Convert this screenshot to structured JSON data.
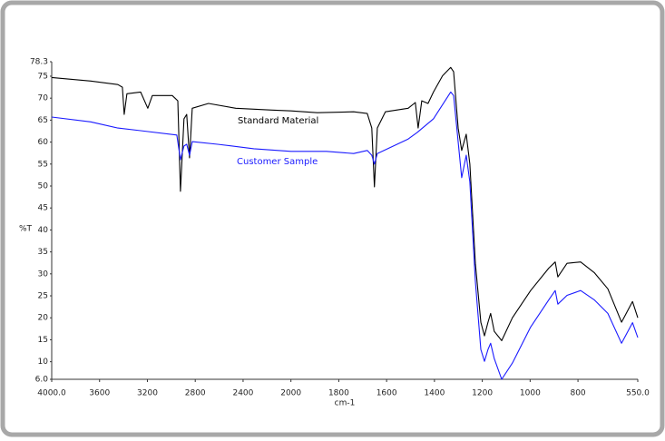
{
  "chart_data": {
    "type": "line",
    "y_label": "%T",
    "x_label": "cm-1",
    "xlim": [
      4000,
      550
    ],
    "x_scale_break": 2000,
    "xticks": [
      {
        "value": 4000,
        "label": "4000.0"
      },
      3600,
      3200,
      2800,
      2400,
      2000,
      1800,
      1600,
      1400,
      1200,
      1000,
      800,
      {
        "value": 550,
        "label": "550.0"
      }
    ],
    "ylim": [
      6,
      78.3
    ],
    "yticks": [
      {
        "value": 6,
        "label": "6.0"
      },
      10,
      15,
      20,
      25,
      30,
      35,
      40,
      45,
      50,
      55,
      60,
      65,
      70,
      75,
      78.3
    ],
    "annotations": [
      {
        "text": "Standard Material",
        "color": "#000000"
      },
      {
        "text": "Customer Sample",
        "color": "#1a1aff"
      }
    ],
    "series": [
      {
        "color": "#000000",
        "x": [
          4000,
          3674,
          3447,
          3409,
          3394,
          3371,
          3257,
          3197,
          3159,
          2992,
          2946,
          2924,
          2894,
          2871,
          2848,
          2825,
          2689,
          2461,
          2158,
          2000,
          1890,
          1738,
          1681,
          1662,
          1651,
          1639,
          1605,
          1510,
          1480,
          1468,
          1453,
          1427,
          1404,
          1366,
          1332,
          1320,
          1301,
          1286,
          1267,
          1252,
          1229,
          1206,
          1191,
          1176,
          1165,
          1150,
          1119,
          1074,
          998,
          922,
          895,
          884,
          846,
          789,
          732,
          675,
          618,
          572,
          550
        ],
        "values": [
          74.7,
          73.9,
          73.1,
          72.5,
          66.3,
          71.0,
          71.4,
          67.7,
          70.6,
          70.6,
          69.4,
          48.8,
          65.3,
          66.3,
          56.4,
          67.7,
          68.8,
          67.7,
          67.3,
          67.1,
          66.7,
          66.9,
          66.5,
          63.2,
          49.8,
          63.2,
          66.9,
          67.7,
          69.0,
          63.2,
          69.4,
          68.8,
          71.4,
          75.1,
          77.0,
          76.0,
          63.2,
          58.1,
          61.8,
          55.0,
          32.3,
          19.0,
          15.9,
          19.0,
          21.0,
          16.9,
          14.8,
          20.0,
          26.2,
          31.3,
          32.7,
          29.3,
          32.4,
          32.7,
          30.3,
          26.6,
          19.0,
          23.7,
          20.0
        ]
      },
      {
        "color": "#1a1aff",
        "x": [
          4000,
          3674,
          3447,
          3257,
          2954,
          2924,
          2894,
          2871,
          2848,
          2825,
          2613,
          2310,
          2000,
          1852,
          1738,
          1681,
          1662,
          1651,
          1639,
          1510,
          1472,
          1404,
          1332,
          1320,
          1286,
          1267,
          1252,
          1229,
          1206,
          1191,
          1176,
          1165,
          1150,
          1119,
          1074,
          998,
          922,
          895,
          884,
          846,
          789,
          732,
          675,
          618,
          572,
          550
        ],
        "values": [
          65.7,
          64.6,
          63.2,
          62.6,
          61.6,
          56.0,
          59.1,
          59.5,
          57.0,
          60.1,
          59.5,
          58.5,
          57.9,
          57.9,
          57.4,
          58.1,
          57.0,
          55.0,
          57.4,
          60.7,
          62.2,
          65.3,
          71.4,
          70.6,
          51.9,
          57.0,
          50.9,
          28.2,
          12.8,
          10.1,
          12.8,
          14.2,
          10.7,
          6.0,
          9.7,
          17.9,
          24.1,
          26.2,
          23.1,
          25.1,
          26.2,
          24.1,
          21.0,
          14.2,
          18.9,
          15.5
        ]
      }
    ]
  }
}
